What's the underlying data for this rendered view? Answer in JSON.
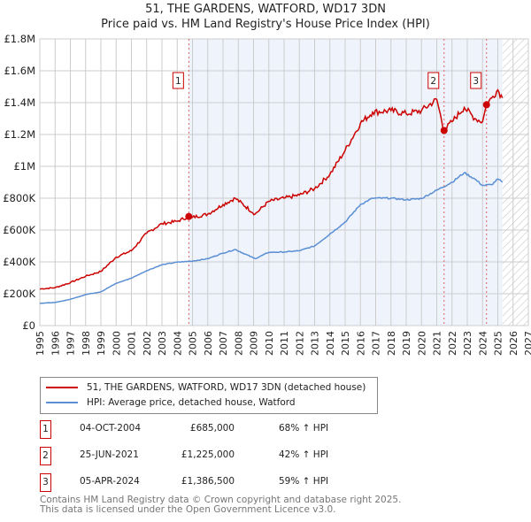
{
  "chart_data": {
    "type": "line",
    "title": "51, THE GARDENS, WATFORD, WD17 3DN",
    "subtitle": "Price paid vs. HM Land Registry's House Price Index (HPI)",
    "xlim": [
      1995,
      2027
    ],
    "ylim": [
      0,
      1800000
    ],
    "x_ticks": [
      "1995",
      "1996",
      "1997",
      "1998",
      "1999",
      "2000",
      "2001",
      "2002",
      "2003",
      "2004",
      "2005",
      "2006",
      "2007",
      "2008",
      "2009",
      "2010",
      "2011",
      "2012",
      "2013",
      "2014",
      "2015",
      "2016",
      "2017",
      "2018",
      "2019",
      "2020",
      "2021",
      "2022",
      "2023",
      "2024",
      "2025",
      "2026",
      "2027"
    ],
    "y_ticks": [
      {
        "v": 0,
        "label": "£0"
      },
      {
        "v": 200000,
        "label": "£200K"
      },
      {
        "v": 400000,
        "label": "£400K"
      },
      {
        "v": 600000,
        "label": "£600K"
      },
      {
        "v": 800000,
        "label": "£800K"
      },
      {
        "v": 1000000,
        "label": "£1M"
      },
      {
        "v": 1200000,
        "label": "£1.2M"
      },
      {
        "v": 1400000,
        "label": "£1.4M"
      },
      {
        "v": 1600000,
        "label": "£1.6M"
      },
      {
        "v": 1800000,
        "label": "£1.8M"
      }
    ],
    "grid": true,
    "forecast_start": 2025.3,
    "series": [
      {
        "name": "HPI: Average price, detached house, Watford",
        "color": "#5b8fd4",
        "x": [
          1995,
          1996,
          1997,
          1998,
          1999,
          2000,
          2001,
          2002,
          2003,
          2004,
          2005,
          2006,
          2007,
          2007.8,
          2009.1,
          2010,
          2011,
          2012,
          2013,
          2014,
          2015,
          2016,
          2016.8,
          2018,
          2019,
          2020,
          2021,
          2022,
          2022.8,
          2023.5,
          2024,
          2024.6,
          2025,
          2025.3
        ],
        "y": [
          140000,
          145000,
          165000,
          195000,
          212000,
          265000,
          298000,
          345000,
          382000,
          398000,
          405000,
          420000,
          455000,
          478000,
          420000,
          460000,
          462000,
          470000,
          500000,
          575000,
          650000,
          760000,
          800000,
          800000,
          790000,
          798000,
          850000,
          900000,
          960000,
          920000,
          880000,
          885000,
          920000,
          900000
        ]
      },
      {
        "name": "51, THE GARDENS, WATFORD, WD17 3DN (detached house)",
        "color": "#cc0000",
        "x": [
          1995,
          1996,
          1997,
          1998,
          1999,
          2000,
          2001,
          2002,
          2003,
          2004,
          2004.76,
          2005,
          2006,
          2007,
          2007.8,
          2009.1,
          2010,
          2011,
          2012,
          2013,
          2014,
          2015,
          2016,
          2016.8,
          2018,
          2019,
          2020,
          2021,
          2021.48,
          2022,
          2022.8,
          2023.5,
          2024,
          2024.26,
          2024.6,
          2025,
          2025.3
        ],
        "y": [
          230000,
          238000,
          270000,
          310000,
          340000,
          430000,
          470000,
          580000,
          640000,
          655000,
          685000,
          680000,
          700000,
          760000,
          800000,
          700000,
          780000,
          800000,
          820000,
          860000,
          950000,
          1100000,
          1270000,
          1340000,
          1350000,
          1330000,
          1350000,
          1420000,
          1225000,
          1280000,
          1370000,
          1300000,
          1280000,
          1386500,
          1430000,
          1480000,
          1430000
        ]
      }
    ],
    "sales": [
      {
        "id": "1",
        "x": 2004.76,
        "date": "04-OCT-2004",
        "price": "£685,000",
        "value": 685000,
        "hpi": "68% ↑ HPI"
      },
      {
        "id": "2",
        "x": 2021.48,
        "date": "25-JUN-2021",
        "price": "£1,225,000",
        "value": 1225000,
        "hpi": "42% ↑ HPI"
      },
      {
        "id": "3",
        "x": 2024.26,
        "date": "05-APR-2024",
        "price": "£1,386,500",
        "value": 1386500,
        "hpi": "59% ↑ HPI"
      }
    ]
  },
  "legend": {
    "red": "51, THE GARDENS, WATFORD, WD17 3DN (detached house)",
    "blue": "HPI: Average price, detached house, Watford"
  },
  "footer": {
    "line1": "Contains HM Land Registry data © Crown copyright and database right 2025.",
    "line2": "This data is licensed under the Open Government Licence v3.0."
  }
}
